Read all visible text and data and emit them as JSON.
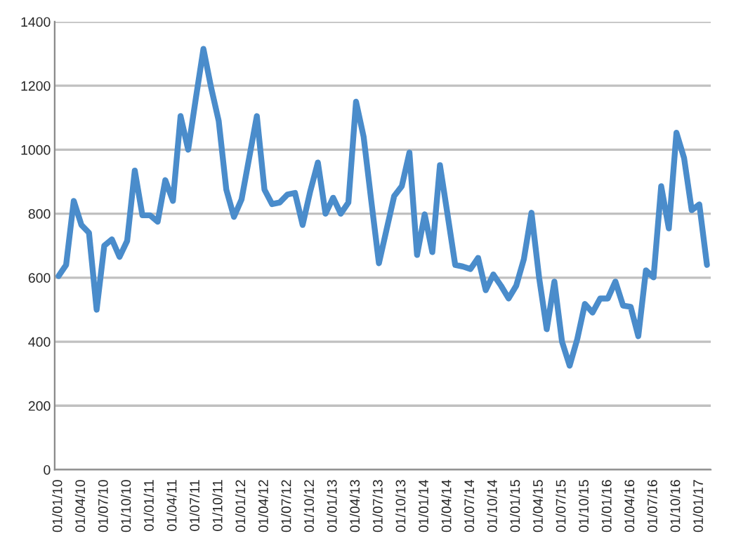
{
  "chart_data": {
    "type": "line",
    "categories": [
      "01/01/10",
      null,
      null,
      "01/04/10",
      null,
      null,
      "01/07/10",
      null,
      null,
      "01/10/10",
      null,
      null,
      "01/01/11",
      null,
      null,
      "01/04/11",
      null,
      null,
      "01/07/11",
      null,
      null,
      "01/10/11",
      null,
      null,
      "01/01/12",
      null,
      null,
      "01/04/12",
      null,
      null,
      "01/07/12",
      null,
      null,
      "01/10/12",
      null,
      null,
      "01/01/13",
      null,
      null,
      "01/04/13",
      null,
      null,
      "01/07/13",
      null,
      null,
      "01/10/13",
      null,
      null,
      "01/01/14",
      null,
      null,
      "01/04/14",
      null,
      null,
      "01/07/14",
      null,
      null,
      "01/10/14",
      null,
      null,
      "01/01/15",
      null,
      null,
      "01/04/15",
      null,
      null,
      "01/07/15",
      null,
      null,
      "01/10/15",
      null,
      null,
      "01/01/16",
      null,
      null,
      "01/04/16",
      null,
      null,
      "01/07/16",
      null,
      null,
      "01/10/16",
      null,
      null,
      "01/01/17",
      null
    ],
    "series": [
      {
        "color": "#4a8ccb",
        "values": [
          605,
          640,
          840,
          765,
          740,
          500,
          700,
          720,
          665,
          715,
          935,
          795,
          795,
          775,
          905,
          840,
          1105,
          1000,
          1160,
          1315,
          1195,
          1090,
          875,
          790,
          845,
          975,
          1105,
          875,
          830,
          835,
          860,
          865,
          765,
          870,
          960,
          800,
          850,
          800,
          835,
          1150,
          1040,
          840,
          645,
          750,
          855,
          886,
          991,
          671,
          798,
          680,
          952,
          797,
          640,
          635,
          627,
          662,
          561,
          610,
          575,
          535,
          575,
          658,
          803,
          600,
          439,
          588,
          400,
          325,
          408,
          518,
          491,
          535,
          535,
          588,
          513,
          509,
          417,
          623,
          601,
          886,
          754,
          1053,
          974,
          811,
          829,
          640
        ]
      }
    ],
    "ylim": [
      0,
      1400
    ],
    "yticks": [
      0,
      200,
      400,
      600,
      800,
      1000,
      1200,
      1400
    ],
    "grid": "y",
    "legend": false,
    "marker": "none",
    "line_style": "solid"
  }
}
